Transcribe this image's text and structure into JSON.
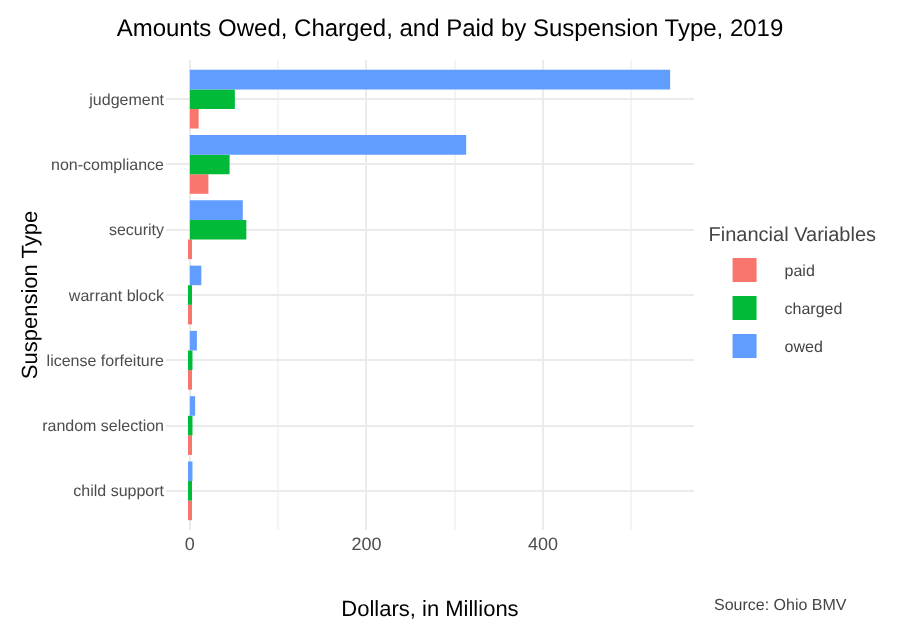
{
  "chart_data": {
    "type": "bar",
    "orientation": "horizontal",
    "title": "Amounts Owed, Charged, and Paid by Suspension Type, 2019",
    "xlabel": "Dollars, in Millions",
    "ylabel": "Suspension Type",
    "legend_title": "Financial Variables",
    "categories": [
      "judgement",
      "non-compliance",
      "security",
      "warrant block",
      "license forfeiture",
      "random selection",
      "child support"
    ],
    "series": [
      {
        "name": "paid",
        "color": "#f8766d",
        "values": [
          10,
          21,
          1,
          2,
          2,
          1,
          1
        ]
      },
      {
        "name": "charged",
        "color": "#00ba38",
        "values": [
          51,
          45,
          64,
          2,
          3,
          3,
          1
        ]
      },
      {
        "name": "owed",
        "color": "#619cff",
        "values": [
          544,
          313,
          60,
          13,
          8,
          6,
          3
        ]
      }
    ],
    "xlim": [
      -27,
      571
    ],
    "xticks": [
      0,
      200,
      400
    ],
    "grid": true,
    "legend": "right",
    "annotations": [
      "Source: Ohio BMV"
    ]
  }
}
